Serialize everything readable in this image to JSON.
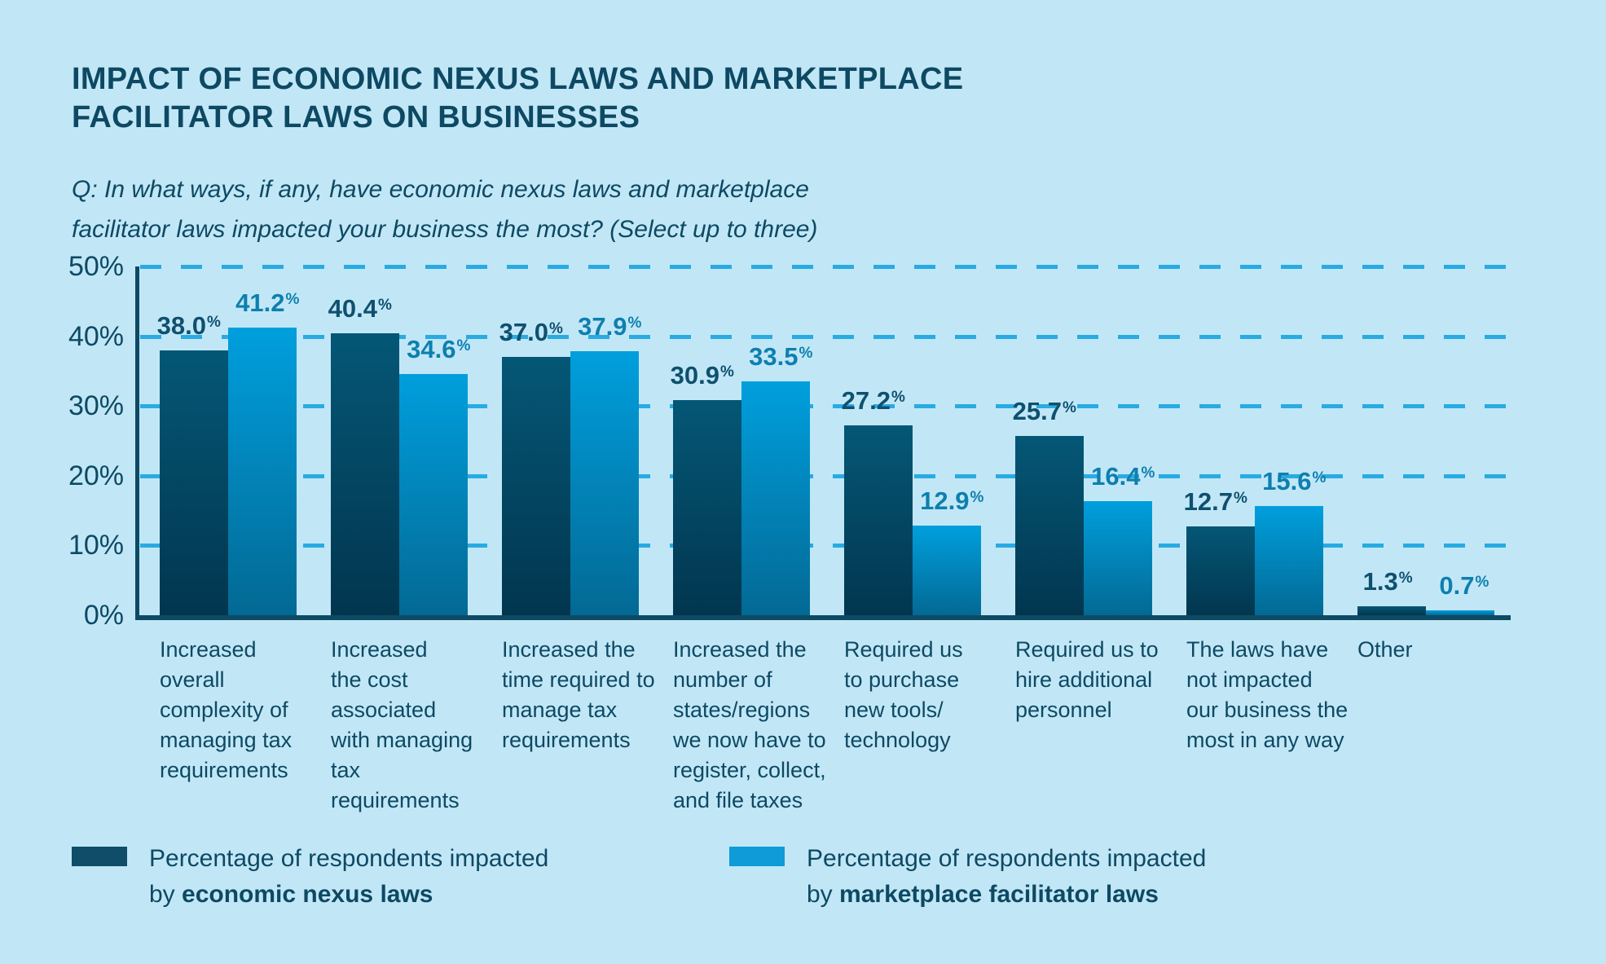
{
  "title": {
    "line1": "IMPACT OF ECONOMIC NEXUS LAWS AND MARKETPLACE",
    "line2": "FACILITATOR LAWS ON BUSINESSES"
  },
  "question": {
    "line1": "Q: In what ways, if any, have economic nexus laws and marketplace",
    "line2": "facilitator laws impacted your business the most? (Select up to three)"
  },
  "percent_suffix": "%",
  "colors": {
    "background": "#c1e7f7",
    "ink": "#0e4963",
    "gridline": "#29abe2",
    "axis": "#0d4a63",
    "dark_bar_top": "#045776",
    "dark_bar_bottom": "#02364f",
    "light_bar_top": "#009fdd",
    "light_bar_bottom": "#036994",
    "dark_value_label": "#0f506e",
    "light_value_label": "#0e7fae"
  },
  "y_axis": {
    "ticks": [
      {
        "label": "50%",
        "value": 50
      },
      {
        "label": "40%",
        "value": 40
      },
      {
        "label": "30%",
        "value": 30
      },
      {
        "label": "20%",
        "value": 20
      },
      {
        "label": "10%",
        "value": 10
      },
      {
        "label": "0%",
        "value": 0
      }
    ]
  },
  "x_axis": {
    "category_lines": [
      [
        "Increased",
        "overall",
        "complexity of",
        "managing tax",
        "requirements"
      ],
      [
        "Increased",
        "the cost",
        "associated",
        "with managing",
        "tax requirements"
      ],
      [
        "Increased the",
        "time required to",
        "manage tax",
        "requirements"
      ],
      [
        "Increased the",
        "number of",
        "states/regions",
        "we now have to",
        "register, collect,",
        "and file taxes"
      ],
      [
        "Required us",
        "to purchase",
        "new tools/",
        "technology"
      ],
      [
        "Required us to",
        "hire additional",
        "personnel"
      ],
      [
        "The laws have",
        "not impacted",
        "our business the",
        "most in any way"
      ],
      [
        "Other"
      ]
    ]
  },
  "chart_data": {
    "type": "bar",
    "title": "IMPACT OF ECONOMIC NEXUS LAWS AND MARKETPLACE FACILITATOR LAWS ON BUSINESSES",
    "subtitle": "Q: In what ways, if any, have economic nexus laws and marketplace facilitator laws impacted your business the most? (Select up to three)",
    "xlabel": "",
    "ylabel": "",
    "ylim": [
      0,
      50
    ],
    "grid": "horizontal-dashed",
    "legend_position": "bottom",
    "categories": [
      "Increased overall complexity of managing tax requirements",
      "Increased the cost associated with managing tax requirements",
      "Increased the time required to manage tax requirements",
      "Increased the number of states/regions we now have to register, collect, and file taxes",
      "Required us to purchase new tools/ technology",
      "Required us to hire additional personnel",
      "The laws have not impacted our business the most in any way",
      "Other"
    ],
    "series": [
      {
        "name": "Percentage of respondents impacted by economic nexus laws",
        "values": [
          38.0,
          40.4,
          37.0,
          30.9,
          27.2,
          25.7,
          12.7,
          1.3
        ],
        "labels": [
          "38.0",
          "40.4",
          "37.0",
          "30.9",
          "27.2",
          "25.7",
          "12.7",
          "1.3"
        ]
      },
      {
        "name": "Percentage of respondents impacted by marketplace facilitator laws",
        "values": [
          41.2,
          34.6,
          37.9,
          33.5,
          12.9,
          16.4,
          15.6,
          0.7
        ],
        "labels": [
          "41.2",
          "34.6",
          "37.9",
          "33.5",
          "12.9",
          "16.4",
          "15.6",
          "0.7"
        ]
      }
    ]
  },
  "legend": [
    {
      "line1": "Percentage of respondents impacted",
      "line2_prefix": "by ",
      "line2_bold": "economic nexus laws",
      "swatch_color": "#0f4d69"
    },
    {
      "line1": "Percentage of respondents impacted",
      "line2_prefix": "by ",
      "line2_bold": "marketplace facilitator laws",
      "swatch_color": "#0e9bd7"
    }
  ]
}
